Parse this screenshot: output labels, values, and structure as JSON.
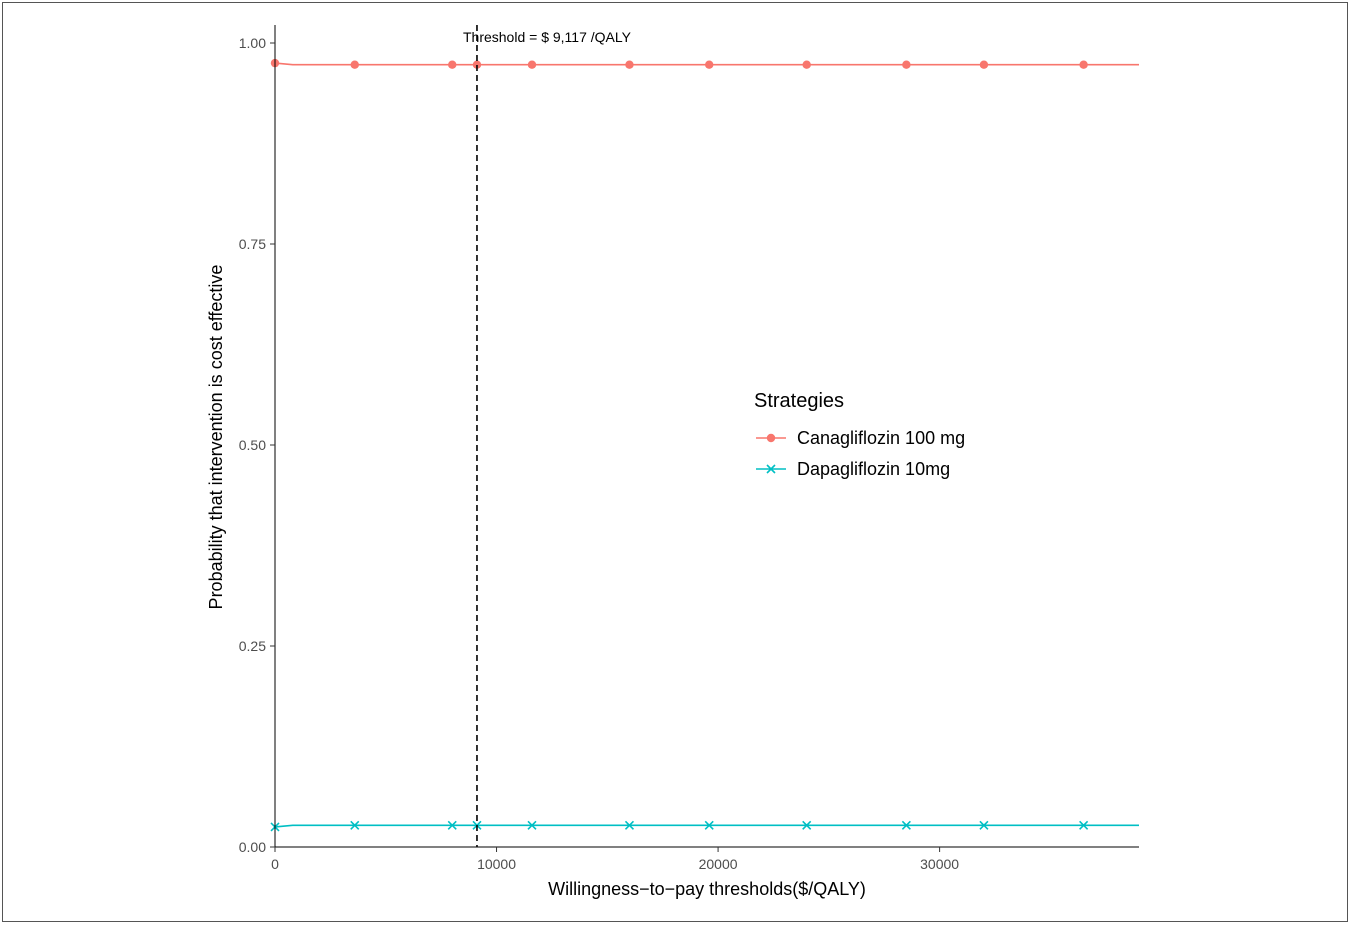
{
  "chart_data": {
    "type": "line",
    "title": "",
    "xlabel": "Willingness−to−pay thresholds($/QALY)",
    "ylabel": "Probability that intervention is cost effective",
    "xlim": [
      0,
      39000
    ],
    "ylim": [
      0,
      1.0
    ],
    "x_ticks": [
      0,
      10000,
      20000,
      30000
    ],
    "x_tick_labels": [
      "0",
      "10000",
      "20000",
      "30000"
    ],
    "y_ticks": [
      0,
      0.25,
      0.5,
      0.75,
      1.0
    ],
    "y_tick_labels": [
      "0.00",
      "0.25",
      "0.50",
      "0.75",
      "1.00"
    ],
    "grid": false,
    "legend_title": "Strategies",
    "legend_position": "center-right",
    "threshold": {
      "x": 9117,
      "label": "Threshold = $ 9,117 /QALY",
      "style": "dashed"
    },
    "series": [
      {
        "name": "Canagliflozin 100 mg",
        "color": "#F8766D",
        "marker": "circle",
        "x": [
          0,
          800,
          3600,
          8000,
          9117,
          11600,
          16000,
          19600,
          24000,
          28500,
          32000,
          36500,
          39000
        ],
        "y": [
          0.975,
          0.973,
          0.973,
          0.973,
          0.973,
          0.973,
          0.973,
          0.973,
          0.973,
          0.973,
          0.973,
          0.973,
          0.973
        ],
        "marker_x": [
          0,
          3600,
          8000,
          9117,
          11600,
          16000,
          19600,
          24000,
          28500,
          32000,
          36500
        ]
      },
      {
        "name": "Dapagliflozin 10mg",
        "color": "#00BFC4",
        "marker": "cross",
        "x": [
          0,
          800,
          3600,
          8000,
          9117,
          11600,
          16000,
          19600,
          24000,
          28500,
          32000,
          36500,
          39000
        ],
        "y": [
          0.025,
          0.027,
          0.027,
          0.027,
          0.027,
          0.027,
          0.027,
          0.027,
          0.027,
          0.027,
          0.027,
          0.027,
          0.027
        ],
        "marker_x": [
          0,
          3600,
          8000,
          9117,
          11600,
          16000,
          19600,
          24000,
          28500,
          32000,
          36500
        ]
      }
    ]
  }
}
